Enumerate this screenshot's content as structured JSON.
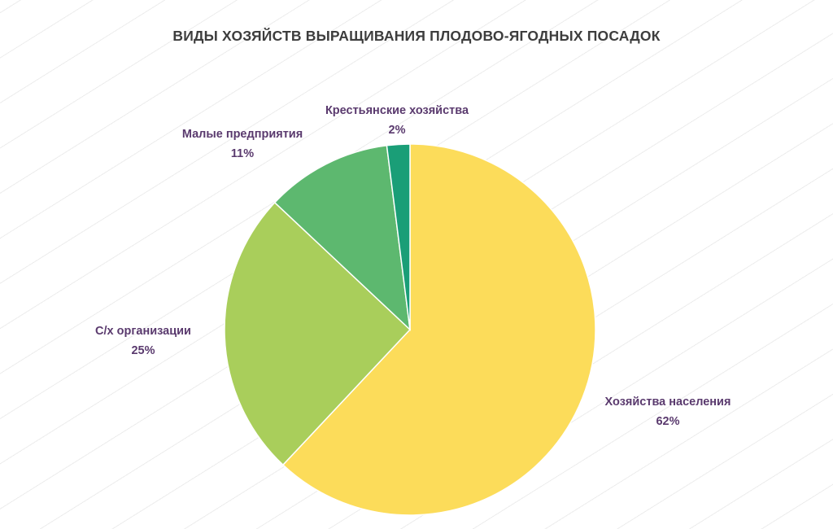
{
  "chart_data": {
    "type": "pie",
    "title": "ВИДЫ ХОЗЯЙСТВ ВЫРАЩИВАНИЯ ПЛОДОВО-ЯГОДНЫХ ПОСАДОК",
    "slices": [
      {
        "label": "Хозяйства населения",
        "value": 62,
        "value_label": "62%",
        "color": "#fcdc5a"
      },
      {
        "label": "С/х организации",
        "value": 25,
        "value_label": "25%",
        "color": "#a9ce5b"
      },
      {
        "label": "Малые предприятия",
        "value": 11,
        "value_label": "11%",
        "color": "#5db86f"
      },
      {
        "label": "Крестьянские хозяйства",
        "value": 2,
        "value_label": "2%",
        "color": "#1a9e77"
      }
    ],
    "start_angle": "12 o'clock",
    "direction": "clockwise",
    "legend": "none"
  }
}
